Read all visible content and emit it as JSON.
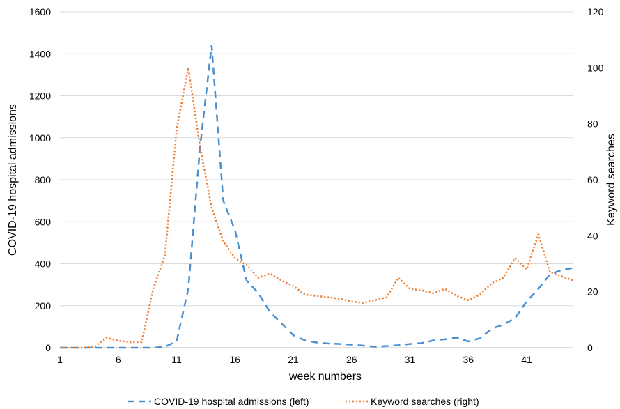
{
  "chart_data": {
    "type": "line",
    "xlabel": "week numbers",
    "ylabel_left": "COVID-19 hospital admissions",
    "ylabel_right": "Keyword searches",
    "x_ticks": [
      "1",
      "6",
      "11",
      "16",
      "21",
      "26",
      "31",
      "36",
      "41"
    ],
    "y_left_ticks": [
      "0",
      "200",
      "400",
      "600",
      "800",
      "1000",
      "1200",
      "1400",
      "1600"
    ],
    "y_right_ticks": [
      "0",
      "20",
      "40",
      "60",
      "80",
      "100",
      "120"
    ],
    "ylim_left": [
      0,
      1600
    ],
    "ylim_right": [
      0,
      120
    ],
    "xlim": [
      1,
      45
    ],
    "grid": "horizontal",
    "legend_position": "bottom",
    "x": [
      1,
      2,
      3,
      4,
      5,
      6,
      7,
      8,
      9,
      10,
      11,
      12,
      13,
      14,
      15,
      16,
      17,
      18,
      19,
      20,
      21,
      22,
      23,
      24,
      25,
      26,
      27,
      28,
      29,
      30,
      31,
      32,
      33,
      34,
      35,
      36,
      37,
      38,
      39,
      40,
      41,
      42,
      43,
      44,
      45
    ],
    "series": [
      {
        "name": "COVID-19 hospital admissions (left)",
        "axis": "left",
        "color": "#4A90D0",
        "style": "dashed",
        "values": [
          0,
          0,
          0,
          0,
          0,
          0,
          0,
          0,
          0,
          5,
          30,
          280,
          950,
          1440,
          700,
          560,
          320,
          260,
          170,
          115,
          60,
          35,
          25,
          20,
          18,
          15,
          10,
          5,
          8,
          12,
          18,
          22,
          35,
          40,
          48,
          30,
          45,
          90,
          110,
          140,
          220,
          280,
          350,
          370,
          380
        ]
      },
      {
        "name": "Keyword searches (right)",
        "axis": "right",
        "color": "#ED7D31",
        "style": "dotted",
        "values": [
          0,
          0,
          0,
          0.5,
          3.5,
          2.5,
          2,
          2,
          21,
          33,
          78,
          100,
          72,
          50,
          38,
          32,
          29.5,
          25,
          26.5,
          24,
          22,
          19,
          18.5,
          18,
          17.5,
          16.5,
          16,
          17,
          18,
          25,
          21,
          20.5,
          19.5,
          21,
          18.5,
          17,
          19,
          23,
          25,
          32,
          28,
          40.5,
          27,
          25.5,
          24
        ]
      }
    ]
  },
  "legend": {
    "items": [
      {
        "label": "COVID-19 hospital admissions (left)",
        "color": "#4A90D0",
        "style": "dashed"
      },
      {
        "label": "Keyword searches (right)",
        "color": "#ED7D31",
        "style": "dotted"
      }
    ]
  }
}
